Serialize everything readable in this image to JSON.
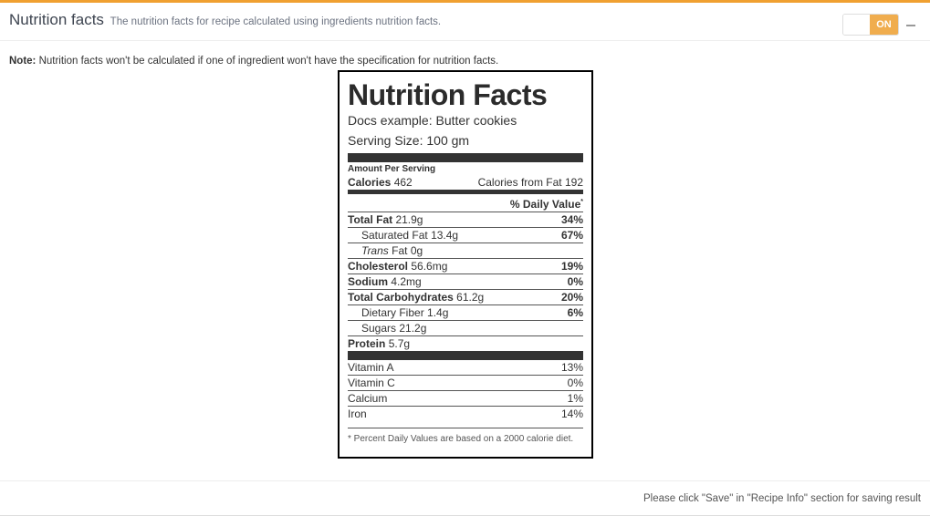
{
  "header": {
    "title": "Nutrition facts",
    "subtitle": "The nutrition facts for recipe calculated using ingredients nutrition facts.",
    "toggle_label": "ON"
  },
  "note": {
    "label": "Note:",
    "text": " Nutrition facts won't be calculated if one of ingredient won't have the specification for nutrition facts."
  },
  "label": {
    "title": "Nutrition Facts",
    "recipe_name": "Docs example: Butter cookies",
    "serving_size_label": "Serving Size:",
    "serving_size_value": "100 gm",
    "amount_per_serving": "Amount Per Serving",
    "calories_label": "Calories",
    "calories_value": "462",
    "calories_from_fat_label": "Calories from Fat",
    "calories_from_fat_value": "192",
    "daily_value_header": "% Daily Value",
    "daily_value_mark": "*",
    "nutrients": [
      {
        "name": "Total Fat",
        "amount": "21.9g",
        "dv": "34%"
      },
      {
        "name": "Saturated Fat",
        "amount": "13.4g",
        "dv": "67%"
      },
      {
        "name_italic": "Trans",
        "name": "Fat",
        "amount": "0g",
        "dv": ""
      },
      {
        "name": "Cholesterol",
        "amount": "56.6mg",
        "dv": "19%"
      },
      {
        "name": "Sodium",
        "amount": "4.2mg",
        "dv": "0%"
      },
      {
        "name": "Total Carbohydrates",
        "amount": "61.2g",
        "dv": "20%"
      },
      {
        "name": "Dietary Fiber",
        "amount": "1.4g",
        "dv": "6%"
      },
      {
        "name": "Sugars",
        "amount": "21.2g",
        "dv": ""
      },
      {
        "name": "Protein",
        "amount": "5.7g",
        "dv": ""
      }
    ],
    "vitamins": [
      {
        "name": "Vitamin A",
        "dv": "13%"
      },
      {
        "name": "Vitamin C",
        "dv": "0%"
      },
      {
        "name": "Calcium",
        "dv": "1%"
      },
      {
        "name": "Iron",
        "dv": "14%"
      }
    ],
    "footnote": "* Percent Daily Values are based on a 2000 calorie diet."
  },
  "footer": {
    "text": "Please click \"Save\" in \"Recipe Info\" section for saving result"
  },
  "colors": {
    "accent": "#f0a030",
    "toggle_on": "#f0ad4e"
  }
}
